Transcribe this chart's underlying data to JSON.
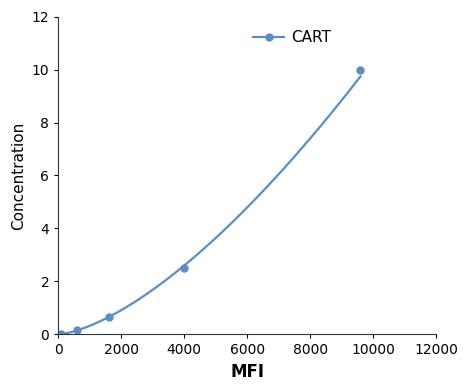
{
  "x": [
    100,
    600,
    1600,
    4000,
    9600
  ],
  "y": [
    0.0,
    0.15,
    0.65,
    2.5,
    10.0
  ],
  "line_color": "#5B8EC5",
  "marker_color": "#5B8EC5",
  "marker_style": "o",
  "marker_size": 5,
  "line_width": 1.6,
  "xlabel": "MFI",
  "ylabel": "Concentration",
  "xlim": [
    0,
    12000
  ],
  "ylim": [
    0,
    12
  ],
  "xticks": [
    0,
    2000,
    4000,
    6000,
    8000,
    10000,
    12000
  ],
  "yticks": [
    0,
    2,
    4,
    6,
    8,
    10,
    12
  ],
  "legend_label": "CART",
  "xlabel_fontsize": 12,
  "ylabel_fontsize": 11,
  "tick_fontsize": 10,
  "legend_fontsize": 11,
  "background_color": "#ffffff"
}
